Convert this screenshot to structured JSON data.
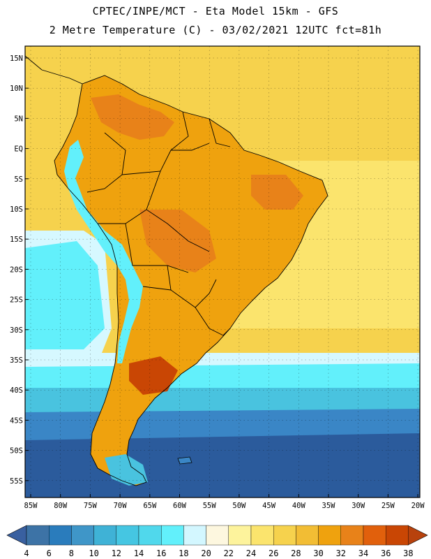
{
  "header": {
    "line1": "CPTEC/INPE/MCT -  Eta Model 15km - GFS",
    "line2": "2 Metre Temperature (C) - 03/02/2021 12UTC fct=81h"
  },
  "axes": {
    "lat_labels": [
      "15N",
      "10N",
      "5N",
      "EQ",
      "5S",
      "10S",
      "15S",
      "20S",
      "25S",
      "30S",
      "35S",
      "40S",
      "45S",
      "50S",
      "55S"
    ],
    "lon_labels": [
      "85W",
      "80W",
      "75W",
      "70W",
      "65W",
      "60W",
      "55W",
      "50W",
      "45W",
      "40W",
      "35W",
      "30W",
      "25W",
      "20W"
    ]
  },
  "legend": {
    "labels": [
      "4",
      "6",
      "8",
      "10",
      "12",
      "14",
      "16",
      "18",
      "20",
      "22",
      "24",
      "26",
      "28",
      "30",
      "32",
      "34",
      "36",
      "38"
    ],
    "colors": [
      "#3d73a6",
      "#2a7cbc",
      "#3f96c8",
      "#3fb2d6",
      "#45c6e2",
      "#50d8ec",
      "#62f0fb",
      "#d3f7ff",
      "#fdf7df",
      "#fdf39c",
      "#fbe46d",
      "#f6d24d",
      "#f2bd34",
      "#efa20e",
      "#e88219",
      "#e1600c",
      "#c94604"
    ],
    "left_arrow_color": "#3960a0",
    "right_arrow_color": "#b8420d"
  },
  "map_colors": {
    "ocean_south_deep": "#2b5b9c",
    "ocean_south_mid": "#3a86c6",
    "ocean_south_light": "#49c3df",
    "ocean_cyan": "#62f0fb",
    "ocean_pale": "#d6f8ff",
    "ocean_yellow": "#fbe46d",
    "ocean_gold": "#f6d24d",
    "land_warm": "#efa20e",
    "land_orange": "#e88219",
    "land_hot": "#c94604",
    "andes": "#62f0fb"
  }
}
